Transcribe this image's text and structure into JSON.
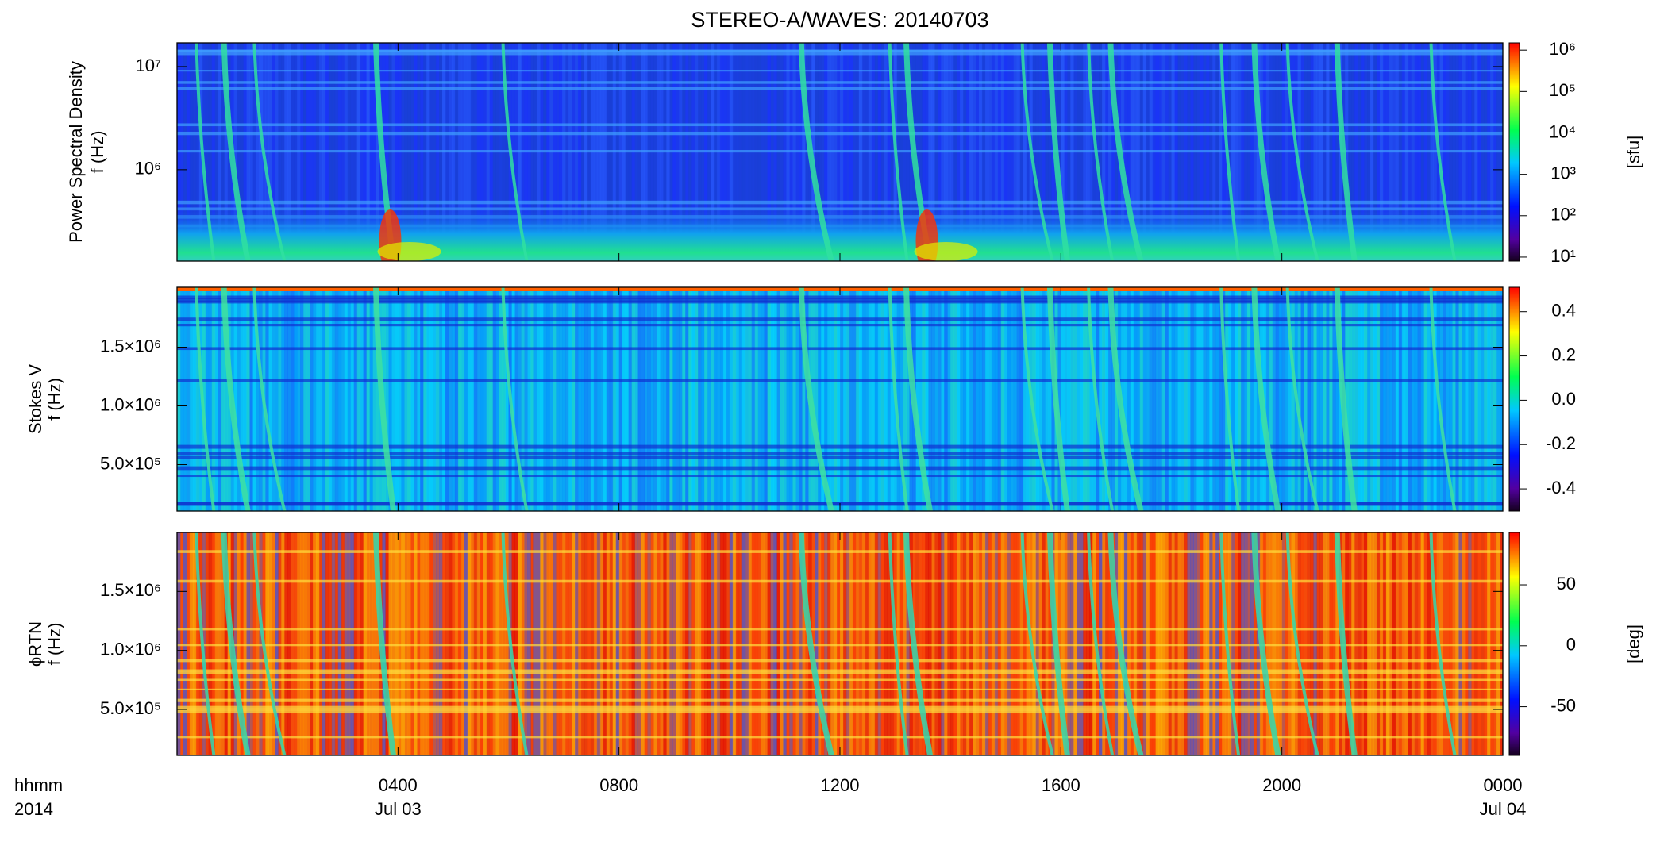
{
  "chart_data": [
    {
      "type": "heatmap",
      "title": "STEREO-A/WAVES: 20140703",
      "ylabel": "Power Spectral Density",
      "ylabel2": "f (Hz)",
      "log": true,
      "ylim": [
        130000,
        17000000
      ],
      "yticks": [
        {
          "value": 1000000,
          "label": "10⁶"
        },
        {
          "value": 10000000,
          "label": "10⁷"
        }
      ],
      "colorbar": {
        "log": true,
        "lim": [
          8,
          1500000
        ],
        "label": "[sfu]",
        "ticks": [
          {
            "value": 10,
            "label": "10¹"
          },
          {
            "value": 100,
            "label": "10²"
          },
          {
            "value": 1000,
            "label": "10³"
          },
          {
            "value": 10000,
            "label": "10⁴"
          },
          {
            "value": 100000,
            "label": "10⁵"
          },
          {
            "value": 1000000,
            "label": "10⁶"
          }
        ]
      }
    },
    {
      "type": "heatmap",
      "ylabel": "Stokes V",
      "ylabel2": "f (Hz)",
      "log": false,
      "ylim": [
        105000,
        2010000
      ],
      "yticks": [
        {
          "value": 500000,
          "label": "5.0×10⁵"
        },
        {
          "value": 1000000,
          "label": "1.0×10⁶"
        },
        {
          "value": 1500000,
          "label": "1.5×10⁶"
        }
      ],
      "colorbar": {
        "log": false,
        "lim": [
          -0.5,
          0.51
        ],
        "ticks": [
          -0.4,
          -0.2,
          {
            "value": 0,
            "label": "0.0"
          },
          0.2,
          0.4
        ]
      }
    },
    {
      "type": "heatmap",
      "ylabel": "ϕRTN",
      "ylabel2": "f (Hz)",
      "log": false,
      "ylim": [
        110000,
        2000000
      ],
      "yticks": [
        {
          "value": 500000,
          "label": "5.0×10⁵"
        },
        {
          "value": 1000000,
          "label": "1.0×10⁶"
        },
        {
          "value": 1500000,
          "label": "1.5×10⁶"
        }
      ],
      "colorbar": {
        "log": false,
        "lim": [
          -90,
          93
        ],
        "label": "[deg]",
        "ticks": [
          -50,
          0,
          50
        ]
      },
      "xlim": [
        0,
        24
      ],
      "xlabel": "hhmm",
      "xlabel2": "2014",
      "xticks": [
        {
          "value": 4,
          "label": "0400"
        },
        {
          "value": 8,
          "label": "0800"
        },
        {
          "value": 12,
          "label": "1200"
        },
        {
          "value": 16,
          "label": "1600"
        },
        {
          "value": 20,
          "label": "2000"
        },
        {
          "value": 24,
          "label": "0000"
        }
      ],
      "xtick_dates": [
        {
          "value": 4,
          "label": "Jul 03"
        },
        {
          "value": 24,
          "label": "Jul 04"
        }
      ]
    }
  ]
}
